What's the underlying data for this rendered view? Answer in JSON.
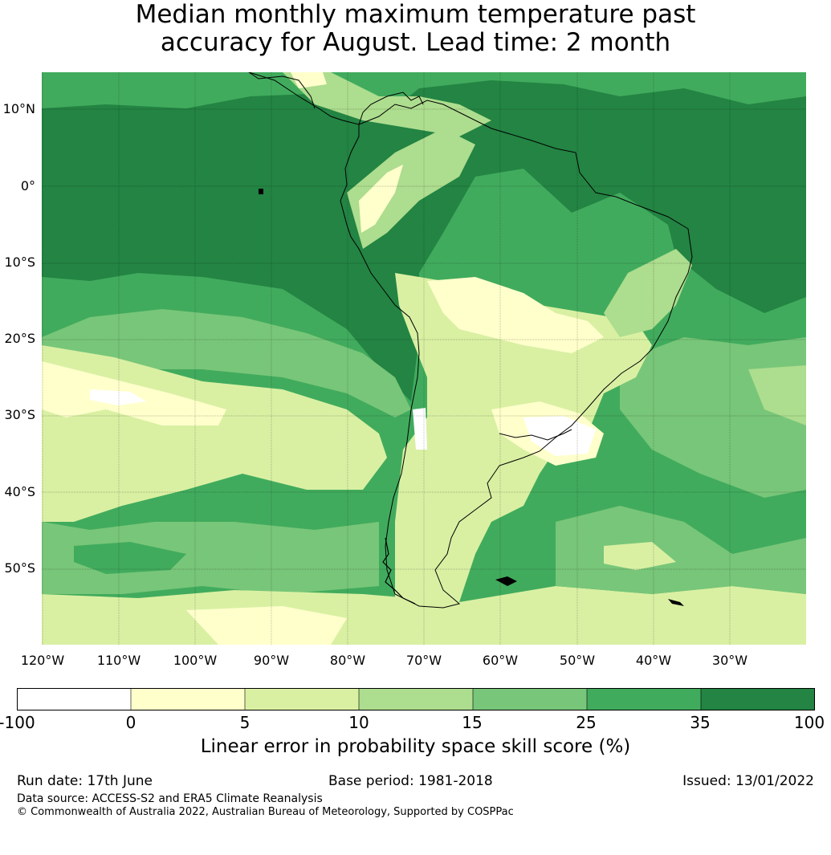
{
  "title_line1": "Median monthly maximum temperature past",
  "title_line2": "accuracy for August. Lead time: 2 month",
  "lat_labels": [
    "10°N",
    "0°",
    "10°S",
    "20°S",
    "30°S",
    "40°S",
    "50°S"
  ],
  "lon_labels": [
    "120°W",
    "110°W",
    "100°W",
    "90°W",
    "80°W",
    "70°W",
    "60°W",
    "50°W",
    "40°W",
    "30°W"
  ],
  "colorbar": {
    "ticks": [
      "-100",
      "0",
      "5",
      "10",
      "15",
      "25",
      "35",
      "100"
    ],
    "colors": [
      "#ffffff",
      "#ffffcc",
      "#d9f0a3",
      "#addd8e",
      "#78c679",
      "#41ab5d",
      "#238443"
    ],
    "label": "Linear error in probability space skill score (%)"
  },
  "footer": {
    "run_date": "Run date: 17th June",
    "base_period": "Base period: 1981-2018",
    "issued": "Issued: 13/01/2022",
    "data_source": "Data source: ACCESS-S2 and ERA5 Climate Reanalysis",
    "copyright": "© Commonwealth of Australia 2022, Australian Bureau of Meteorology, Supported by COSPPac"
  }
}
